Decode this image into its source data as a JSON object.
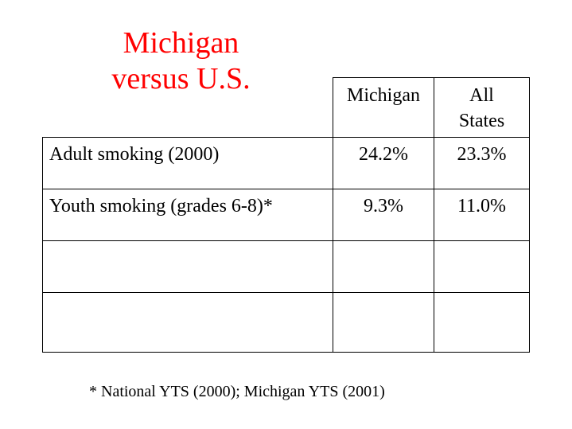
{
  "title": {
    "line1": "Michigan",
    "line2": "versus U.S.",
    "color": "#ff0000"
  },
  "table": {
    "columns": [
      "Michigan",
      "All States"
    ],
    "column_lines": [
      [
        "Michigan"
      ],
      [
        "All",
        "States"
      ]
    ],
    "rows": [
      {
        "label": "Adult smoking (2000)",
        "michigan": "24.2%",
        "all_states": "23.3%"
      },
      {
        "label": "Youth smoking (grades 6-8)*",
        "michigan": "9.3%",
        "all_states": "11.0%"
      },
      {
        "label": "",
        "michigan": "",
        "all_states": ""
      },
      {
        "label": "",
        "michigan": "",
        "all_states": ""
      }
    ]
  },
  "footnote": "* National YTS (2000); Michigan YTS (2001)"
}
